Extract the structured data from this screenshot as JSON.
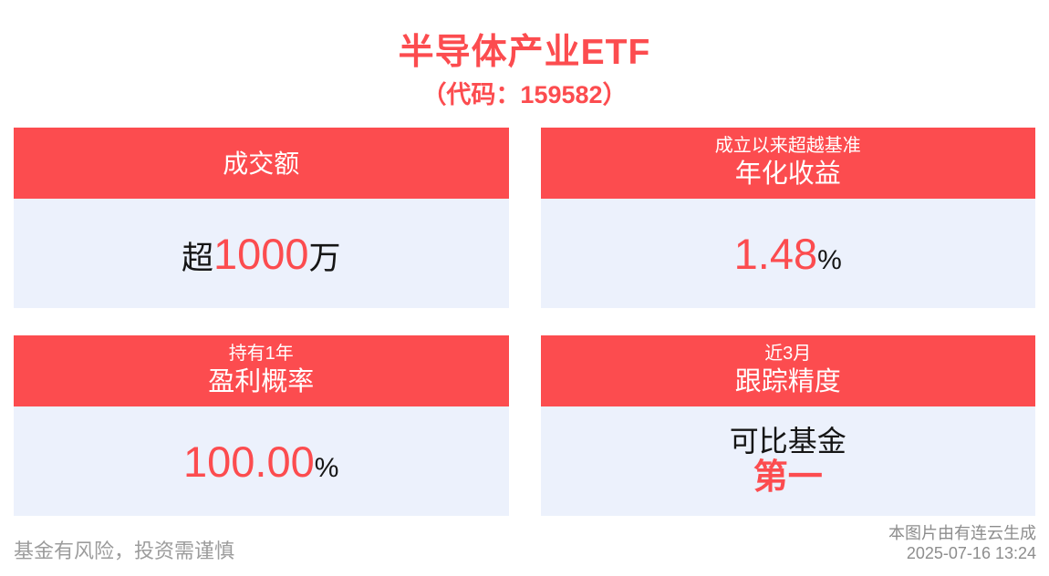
{
  "page": {
    "title": "半导体产业ETF",
    "subtitle": "（代码：159582）"
  },
  "cards": [
    {
      "header": {
        "main": "成交额"
      },
      "value": {
        "prefix": "超",
        "number": "1000",
        "suffix": "万"
      }
    },
    {
      "header": {
        "small": "成立以来超越基准",
        "main": "年化收益"
      },
      "value": {
        "number": "1.48",
        "suffix": "%"
      }
    },
    {
      "header": {
        "small": "持有1年",
        "main": "盈利概率"
      },
      "value": {
        "number": "100.00",
        "suffix": "%"
      }
    },
    {
      "header": {
        "small": "近3月",
        "main": "跟踪精度"
      },
      "value": {
        "line1": "可比基金",
        "line2": "第一"
      }
    }
  ],
  "footer": {
    "disclaimer": "基金有风险，投资需谨慎",
    "source": "本图片由有连云生成",
    "timestamp": "2025-07-16 13:24"
  },
  "colors": {
    "accent_red": "#fc4c4f",
    "card_body_bg": "#ecf1fc",
    "text_black": "#151515",
    "text_gray": "#9c9c9c"
  }
}
